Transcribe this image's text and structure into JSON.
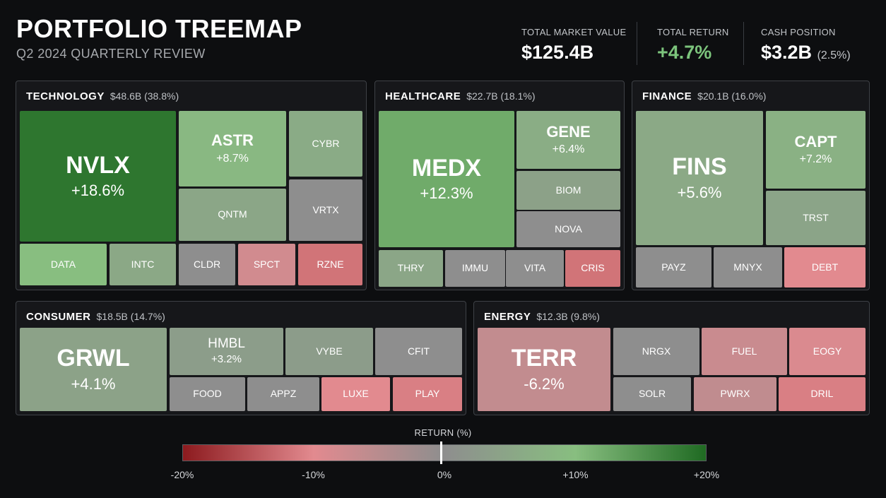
{
  "header": {
    "title": "PORTFOLIO TREEMAP",
    "subtitle": "Q2 2024 QUARTERLY REVIEW"
  },
  "kpis": {
    "market_value": {
      "label": "TOTAL MARKET VALUE",
      "value": "$125.4B"
    },
    "total_return": {
      "label": "TOTAL RETURN",
      "value": "+4.7%"
    },
    "cash": {
      "label": "CASH POSITION",
      "value": "$3.2B",
      "sub": "(2.5%)"
    }
  },
  "colors": {
    "positive": "#7cc47c",
    "scale_min": "#8c1a1e",
    "scale_mid": "#8e8e8e",
    "scale_max": "#1f6a22",
    "background": "#0d0e10"
  },
  "chart_data": {
    "type": "treemap",
    "color_metric": "return_pct",
    "color_range": [
      -20,
      20
    ],
    "sectors": [
      {
        "name": "TECHNOLOGY",
        "value": "$48.6B",
        "share": "(38.8%)",
        "holdings": [
          {
            "ticker": "NVLX",
            "return_label": "+18.6%",
            "return": 18.6
          },
          {
            "ticker": "ASTR",
            "return_label": "+8.7%",
            "return": 8.7
          },
          {
            "ticker": "CYBR",
            "return": 6.0
          },
          {
            "ticker": "QNTM",
            "return": 5.0
          },
          {
            "ticker": "VRTX",
            "return": 0.0
          },
          {
            "ticker": "DATA",
            "return": 10.0
          },
          {
            "ticker": "INTC",
            "return": 5.5
          },
          {
            "ticker": "CLDR",
            "return": 0.0
          },
          {
            "ticker": "SPCT",
            "return": -8.0
          },
          {
            "ticker": "RZNE",
            "return": -12.0
          }
        ]
      },
      {
        "name": "HEALTHCARE",
        "value": "$22.7B",
        "share": "(18.1%)",
        "holdings": [
          {
            "ticker": "MEDX",
            "return_label": "+12.3%",
            "return": 12.3
          },
          {
            "ticker": "GENE",
            "return_label": "+6.4%",
            "return": 6.4
          },
          {
            "ticker": "BIOM",
            "return": 4.0
          },
          {
            "ticker": "NOVA",
            "return": 0.0
          },
          {
            "ticker": "THRY",
            "return": 5.0
          },
          {
            "ticker": "IMMU",
            "return": 0.0
          },
          {
            "ticker": "VITA",
            "return": 0.0
          },
          {
            "ticker": "CRIS",
            "return": -12.0
          }
        ]
      },
      {
        "name": "FINANCE",
        "value": "$20.1B",
        "share": "(16.0%)",
        "holdings": [
          {
            "ticker": "FINS",
            "return_label": "+5.6%",
            "return": 5.6
          },
          {
            "ticker": "CAPT",
            "return_label": "+7.2%",
            "return": 7.2
          },
          {
            "ticker": "TRST",
            "return": 4.5
          },
          {
            "ticker": "PAYZ",
            "return": 0.0
          },
          {
            "ticker": "MNYX",
            "return": 0.0
          },
          {
            "ticker": "DEBT",
            "return": -10.0
          }
        ]
      },
      {
        "name": "CONSUMER",
        "value": "$18.5B",
        "share": "(14.7%)",
        "holdings": [
          {
            "ticker": "GRWL",
            "return_label": "+4.1%",
            "return": 4.1
          },
          {
            "ticker": "HMBL",
            "return_label": "+3.2%",
            "return": 3.2
          },
          {
            "ticker": "VYBE",
            "return": 3.0
          },
          {
            "ticker": "CFIT",
            "return": 0.0
          },
          {
            "ticker": "FOOD",
            "return": 0.0
          },
          {
            "ticker": "APPZ",
            "return": 0.0
          },
          {
            "ticker": "LUXE",
            "return": -10.0
          },
          {
            "ticker": "PLAY",
            "return": -11.0
          }
        ]
      },
      {
        "name": "ENERGY",
        "value": "$12.3B",
        "share": "(9.8%)",
        "holdings": [
          {
            "ticker": "TERR",
            "return_label": "-6.2%",
            "return": -6.2
          },
          {
            "ticker": "NRGX",
            "return": 0.0
          },
          {
            "ticker": "FUEL",
            "return": -7.0
          },
          {
            "ticker": "EOGY",
            "return": -9.0
          },
          {
            "ticker": "SOLR",
            "return": 0.0
          },
          {
            "ticker": "PWRX",
            "return": -6.0
          },
          {
            "ticker": "DRIL",
            "return": -11.0
          }
        ]
      }
    ],
    "legend": {
      "title": "RETURN (%)",
      "ticks": [
        "-20%",
        "-10%",
        "0%",
        "+10%",
        "+20%"
      ],
      "tick_values": [
        -20,
        -10,
        0,
        10,
        20
      ]
    }
  }
}
